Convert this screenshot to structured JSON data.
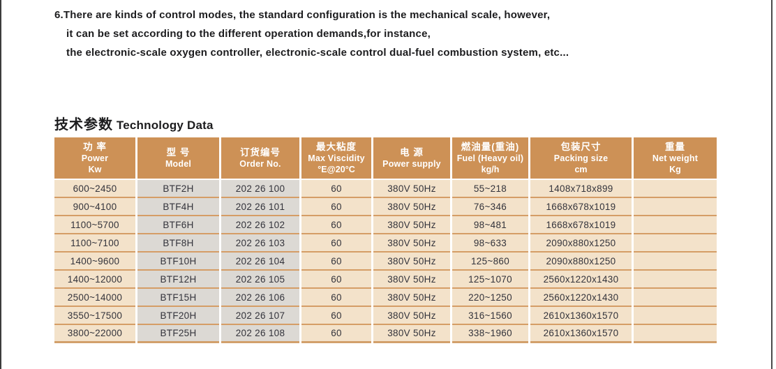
{
  "paragraph": {
    "lines": [
      "6.There are kinds of control modes, the standard configuration is the mechanical scale, however,",
      "it can be set according to the different operation demands,for instance,",
      "the electronic-scale oxygen controller, electronic-scale control dual-fuel combustion system, etc..."
    ]
  },
  "section": {
    "title_zh": "技术参数",
    "title_en": " Technology Data"
  },
  "table": {
    "columns": [
      {
        "zh": "功  率",
        "en": "Power",
        "unit": "Kw",
        "shaded": false
      },
      {
        "zh": "型  号",
        "en": "Model",
        "unit": "",
        "shaded": true
      },
      {
        "zh": "订货编号",
        "en": "Order No.",
        "unit": "",
        "shaded": true
      },
      {
        "zh": "最大粘度",
        "en": "Max  Viscidity",
        "unit": "°E@20°C",
        "shaded": false
      },
      {
        "zh": "电  源",
        "en": "Power supply",
        "unit": "",
        "shaded": false
      },
      {
        "zh": "燃油量(重油)",
        "en": "Fuel (Heavy oil)",
        "unit": "kg/h",
        "shaded": false
      },
      {
        "zh": "包装尺寸",
        "en": "Packing  size",
        "unit": "cm",
        "shaded": false
      },
      {
        "zh": "重量",
        "en": "Net  weight",
        "unit": "Kg",
        "shaded": false
      }
    ],
    "rows": [
      [
        "600~2450",
        "BTF2H",
        "202 26 100",
        "60",
        "380V 50Hz",
        "55~218",
        "1408x718x899",
        ""
      ],
      [
        "900~4100",
        "BTF4H",
        "202 26 101",
        "60",
        "380V 50Hz",
        "76~346",
        "1668x678x1019",
        ""
      ],
      [
        "1100~5700",
        "BTF6H",
        "202 26 102",
        "60",
        "380V 50Hz",
        "98~481",
        "1668x678x1019",
        ""
      ],
      [
        "1100~7100",
        "BTF8H",
        "202 26 103",
        "60",
        "380V 50Hz",
        "98~633",
        "2090x880x1250",
        ""
      ],
      [
        "1400~9600",
        "BTF10H",
        "202 26 104",
        "60",
        "380V 50Hz",
        "125~860",
        "2090x880x1250",
        ""
      ],
      [
        "1400~12000",
        "BTF12H",
        "202 26 105",
        "60",
        "380V 50Hz",
        "125~1070",
        "2560x1220x1430",
        ""
      ],
      [
        "2500~14000",
        "BTF15H",
        "202 26 106",
        "60",
        "380V 50Hz",
        "220~1250",
        "2560x1220x1430",
        ""
      ],
      [
        "3550~17500",
        "BTF20H",
        "202 26 107",
        "60",
        "380V 50Hz",
        "316~1560",
        "2610x1360x1570",
        ""
      ],
      [
        "3800~22000",
        "BTF25H",
        "202 26 108",
        "60",
        "380V 50Hz",
        "338~1960",
        "2610x1360x1570",
        ""
      ]
    ]
  },
  "colors": {
    "header_bg": "#cd9156",
    "header_text": "#ffffff",
    "cell_peach": "#f3e2ca",
    "cell_gray": "#dcd9d4",
    "row_divider": "#d59d66",
    "table_bottom": "#d2a06b",
    "body_text": "#33333b"
  }
}
